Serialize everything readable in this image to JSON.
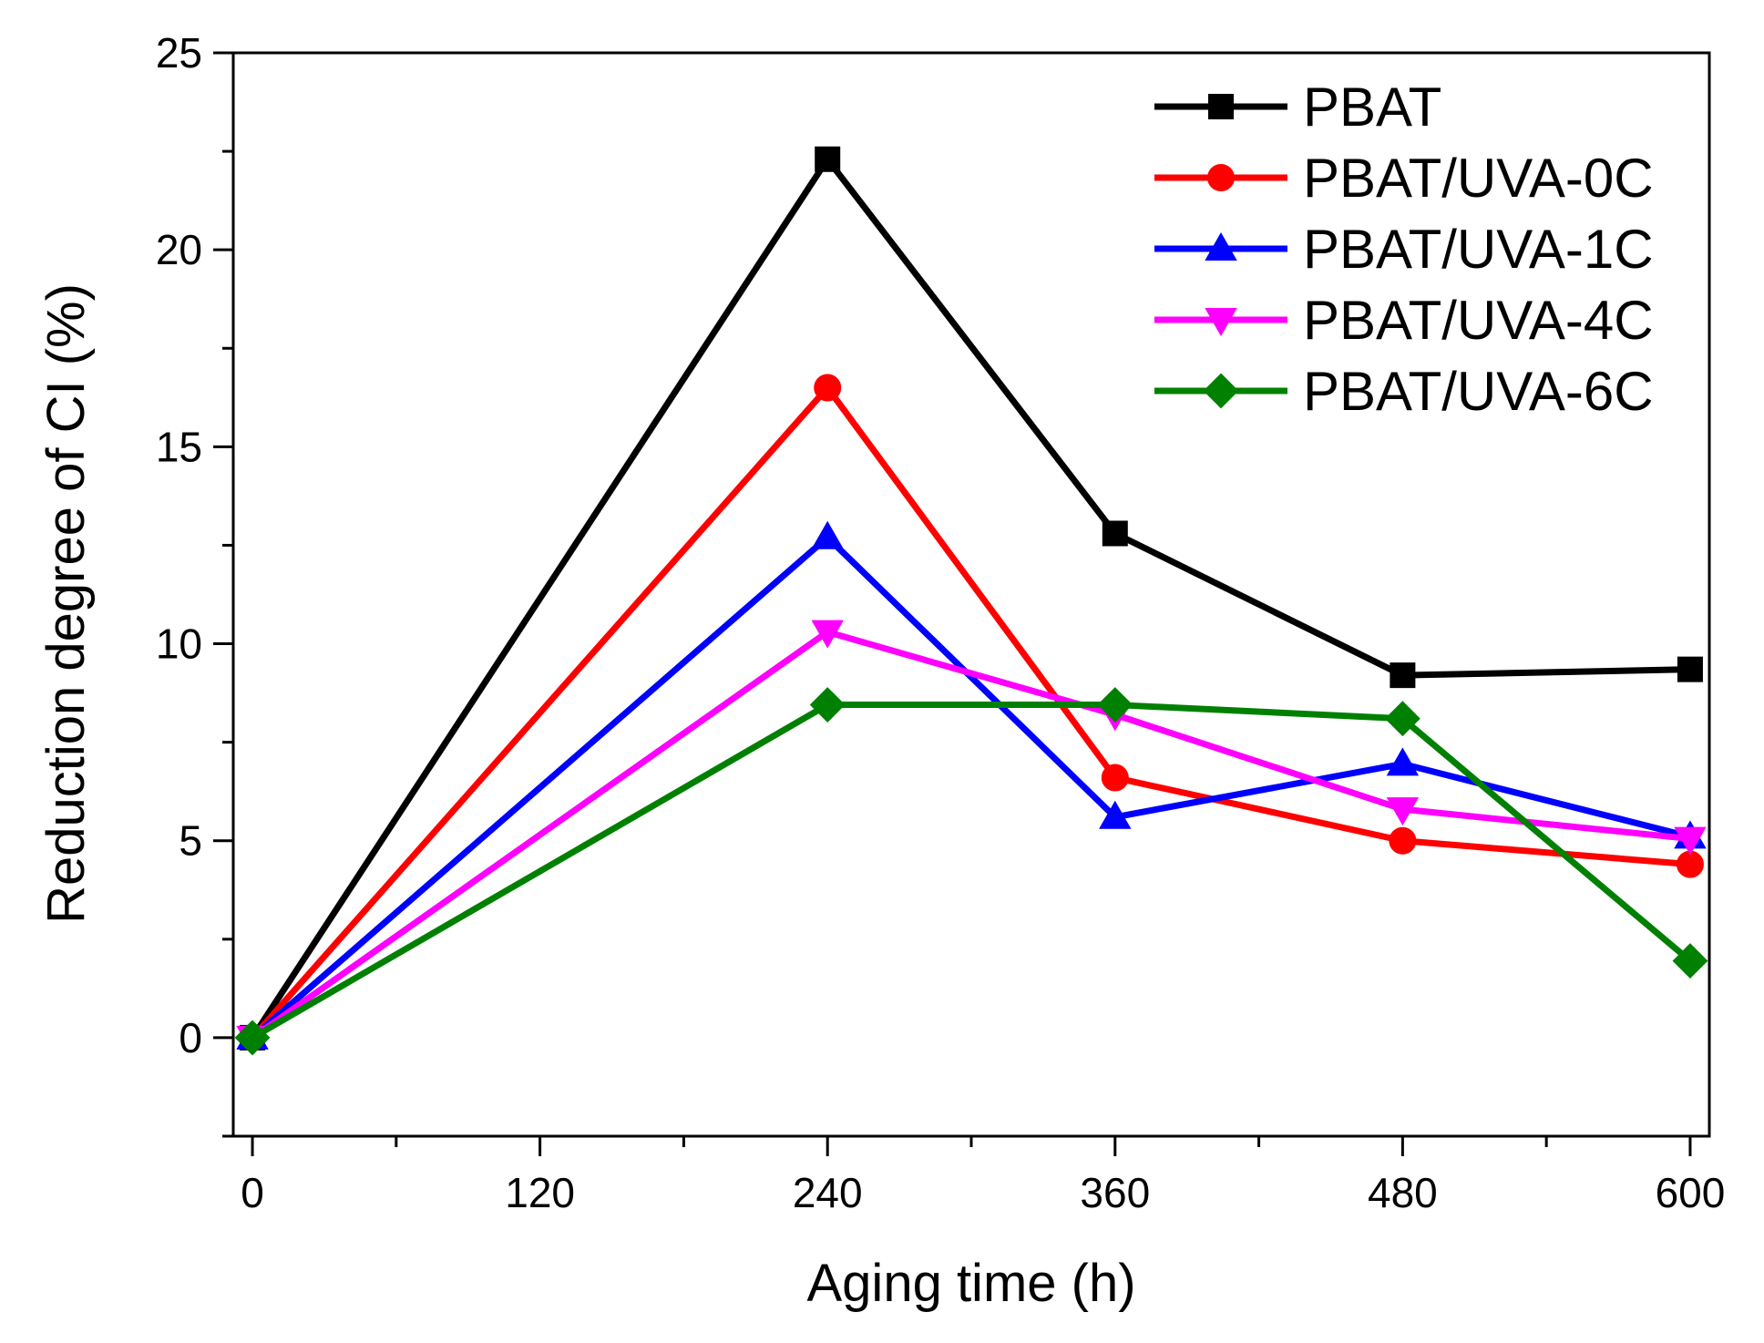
{
  "chart_data": {
    "type": "line",
    "xlabel": "Aging time (h)",
    "ylabel": "Reduction degree of CI (%)",
    "xlim": [
      -8,
      608
    ],
    "ylim": [
      -2.5,
      25
    ],
    "x_ticks": [
      0,
      120,
      240,
      360,
      480,
      600
    ],
    "y_ticks": [
      0,
      5,
      10,
      15,
      20,
      25
    ],
    "legend_position": "top-right",
    "x": [
      0,
      240,
      360,
      480,
      600
    ],
    "series": [
      {
        "name": "PBAT",
        "color": "#000000",
        "marker": "square",
        "values": [
          0,
          22.3,
          12.8,
          9.2,
          9.35
        ]
      },
      {
        "name": "PBAT/UVA-0C",
        "color": "#ff0000",
        "marker": "circle",
        "values": [
          0,
          16.5,
          6.6,
          5.0,
          4.4
        ]
      },
      {
        "name": "PBAT/UVA-1C",
        "color": "#0000ff",
        "marker": "triangle-up",
        "values": [
          0,
          12.7,
          5.6,
          6.95,
          5.1
        ]
      },
      {
        "name": "PBAT/UVA-4C",
        "color": "#ff00ff",
        "marker": "triangle-down",
        "values": [
          0,
          10.3,
          8.2,
          5.8,
          5.05
        ]
      },
      {
        "name": "PBAT/UVA-6C",
        "color": "#008000",
        "marker": "diamond",
        "values": [
          0,
          8.45,
          8.45,
          8.1,
          1.95
        ]
      }
    ]
  }
}
